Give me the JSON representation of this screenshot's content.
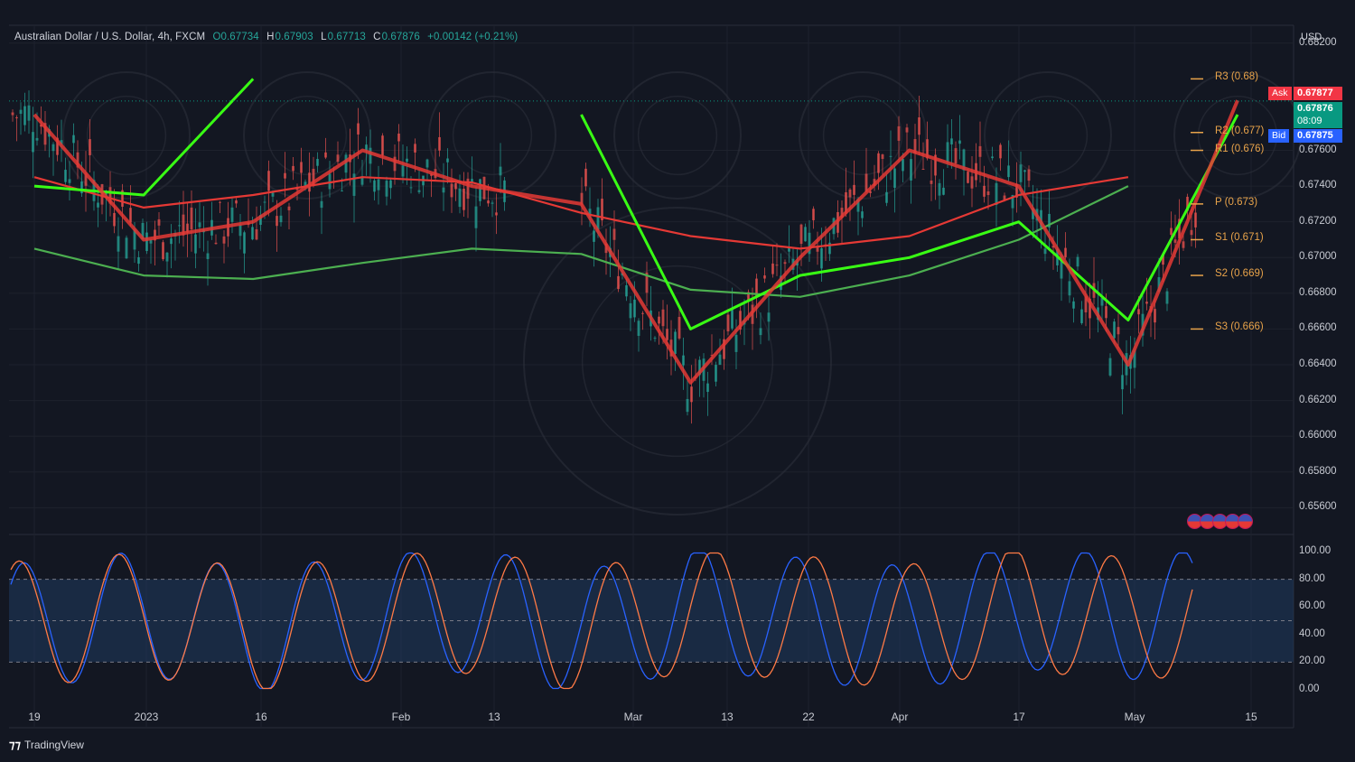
{
  "header": {
    "symbol": "Australian Dollar / U.S. Dollar, 4h, FXCM",
    "open": "O0.67734",
    "high_key": "H",
    "high": "0.67903",
    "low_key": "L",
    "low": "0.67713",
    "close_key": "C",
    "close": "0.67876",
    "change": "+0.00142 (+0.21%)"
  },
  "currency": "USD",
  "price_tags": {
    "ask_label": "Ask",
    "ask": "0.67877",
    "last": "0.67876",
    "countdown": "08:09",
    "bid_label": "Bid",
    "bid": "0.67875"
  },
  "pivots": [
    {
      "label": "R3 (0.68)",
      "value": 0.68
    },
    {
      "label": "R2 (0.677)",
      "value": 0.677
    },
    {
      "label": "R1 (0.676)",
      "value": 0.676
    },
    {
      "label": "P (0.673)",
      "value": 0.673
    },
    {
      "label": "S1 (0.671)",
      "value": 0.671
    },
    {
      "label": "S2 (0.669)",
      "value": 0.669
    },
    {
      "label": "S3 (0.666)",
      "value": 0.666
    }
  ],
  "price_axis": [
    "0.68200",
    "0.67600",
    "0.67400",
    "0.67200",
    "0.67000",
    "0.66800",
    "0.66600",
    "0.66400",
    "0.66200",
    "0.66000",
    "0.65800",
    "0.65600"
  ],
  "osc_axis": [
    "100.00",
    "80.00",
    "60.00",
    "40.00",
    "20.00",
    "0.00"
  ],
  "time_axis": [
    "19",
    "2023",
    "16",
    "Feb",
    "13",
    "Mar",
    "13",
    "22",
    "Apr",
    "17",
    "May",
    "15"
  ],
  "branding": {
    "logo": "TradingView"
  },
  "colors": {
    "background": "#131722",
    "up": "#26a69a",
    "down": "#ef5350",
    "green_ma": "#4caf50",
    "red_ma": "#e53935",
    "bright_green": "#39ff14",
    "pivot": "#e8a34a",
    "ask": "#f23645",
    "last": "#089981",
    "bid": "#2962ff",
    "stoch_k": "#2962ff",
    "stoch_d": "#ff7a45"
  },
  "chart_data": [
    {
      "type": "line",
      "title": "Australian Dollar / U.S. Dollar, 4h, FXCM",
      "x": [
        "19",
        "2023",
        "16",
        "Feb",
        "13",
        "Mar",
        "13",
        "22",
        "Apr",
        "17",
        "May",
        "15"
      ],
      "series": [
        {
          "values": [
            0.6745,
            0.6728,
            0.6735,
            0.6745,
            0.6742,
            0.6725,
            0.6712,
            0.6705,
            0.6712,
            0.6735,
            0.6745,
            null
          ]
        },
        {
          "values": [
            0.6705,
            0.669,
            0.6688,
            0.6697,
            0.6705,
            0.6702,
            0.6682,
            0.6678,
            0.669,
            0.671,
            0.674,
            null
          ]
        },
        {
          "values": [
            0.674,
            0.6735,
            0.68,
            null,
            null,
            0.678,
            0.666,
            0.669,
            0.67,
            0.672,
            0.6665,
            0.678
          ]
        },
        {
          "values": [
            0.678,
            0.671,
            0.672,
            0.676,
            0.674,
            0.673,
            0.663,
            0.67,
            0.676,
            0.674,
            0.664,
            0.6788
          ]
        }
      ],
      "ylim": [
        0.6545,
        0.683
      ],
      "last_price": 0.67876
    },
    {
      "type": "line",
      "x": [
        "19",
        "2023",
        "16",
        "Feb",
        "13",
        "Mar",
        "13",
        "22",
        "Apr",
        "17",
        "May",
        "15"
      ],
      "series": [
        {
          "values": [
            40,
            75,
            20,
            60,
            85,
            15,
            90,
            55,
            30,
            95,
            60,
            92
          ]
        },
        {
          "values": [
            45,
            70,
            25,
            55,
            80,
            20,
            85,
            60,
            35,
            90,
            55,
            90
          ]
        }
      ],
      "ylim": [
        0,
        100
      ],
      "bands": [
        20,
        80
      ]
    }
  ]
}
